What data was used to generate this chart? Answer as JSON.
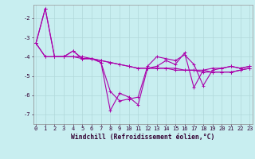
{
  "xlabel": "Windchill (Refroidissement éolien,°C)",
  "background_color": "#c8eef0",
  "grid_color": "#b0d8da",
  "line_color": "#aa00aa",
  "xlim": [
    -0.3,
    23.3
  ],
  "ylim": [
    -7.5,
    -1.3
  ],
  "yticks": [
    -7,
    -6,
    -5,
    -4,
    -3,
    -2
  ],
  "xticks": [
    0,
    1,
    2,
    3,
    4,
    5,
    6,
    7,
    8,
    9,
    10,
    11,
    12,
    13,
    14,
    15,
    16,
    17,
    18,
    19,
    20,
    21,
    22,
    23
  ],
  "lines": [
    [
      -3.3,
      -1.5,
      -4.0,
      -4.0,
      -3.7,
      -4.1,
      -4.1,
      -4.3,
      -5.8,
      -6.3,
      -6.2,
      -6.1,
      -4.5,
      -4.0,
      -4.1,
      -4.2,
      -3.9,
      -4.4,
      -5.5,
      -4.7,
      -4.6,
      -4.5,
      -4.6,
      -4.5
    ],
    [
      -3.3,
      -1.5,
      -4.0,
      -4.0,
      -3.7,
      -4.1,
      -4.1,
      -4.3,
      -6.8,
      -5.9,
      -6.1,
      -6.5,
      -4.6,
      -4.5,
      -4.2,
      -4.4,
      -3.8,
      -5.6,
      -4.7,
      -4.6,
      -4.6,
      -4.5,
      -4.6,
      -4.5
    ],
    [
      -3.3,
      -4.0,
      -4.0,
      -4.0,
      -4.0,
      -4.1,
      -4.1,
      -4.2,
      -4.3,
      -4.4,
      -4.5,
      -4.6,
      -4.6,
      -4.6,
      -4.6,
      -4.6,
      -4.7,
      -4.7,
      -4.8,
      -4.8,
      -4.8,
      -4.8,
      -4.7,
      -4.6
    ],
    [
      -3.3,
      -4.0,
      -4.0,
      -4.0,
      -4.0,
      -4.0,
      -4.1,
      -4.2,
      -4.3,
      -4.4,
      -4.5,
      -4.6,
      -4.6,
      -4.6,
      -4.6,
      -4.7,
      -4.7,
      -4.7,
      -4.7,
      -4.8,
      -4.8,
      -4.8,
      -4.7,
      -4.6
    ]
  ],
  "marker": "+",
  "markersize": 2.5,
  "linewidth": 0.8,
  "tick_fontsize": 5.0,
  "xlabel_fontsize": 5.8
}
